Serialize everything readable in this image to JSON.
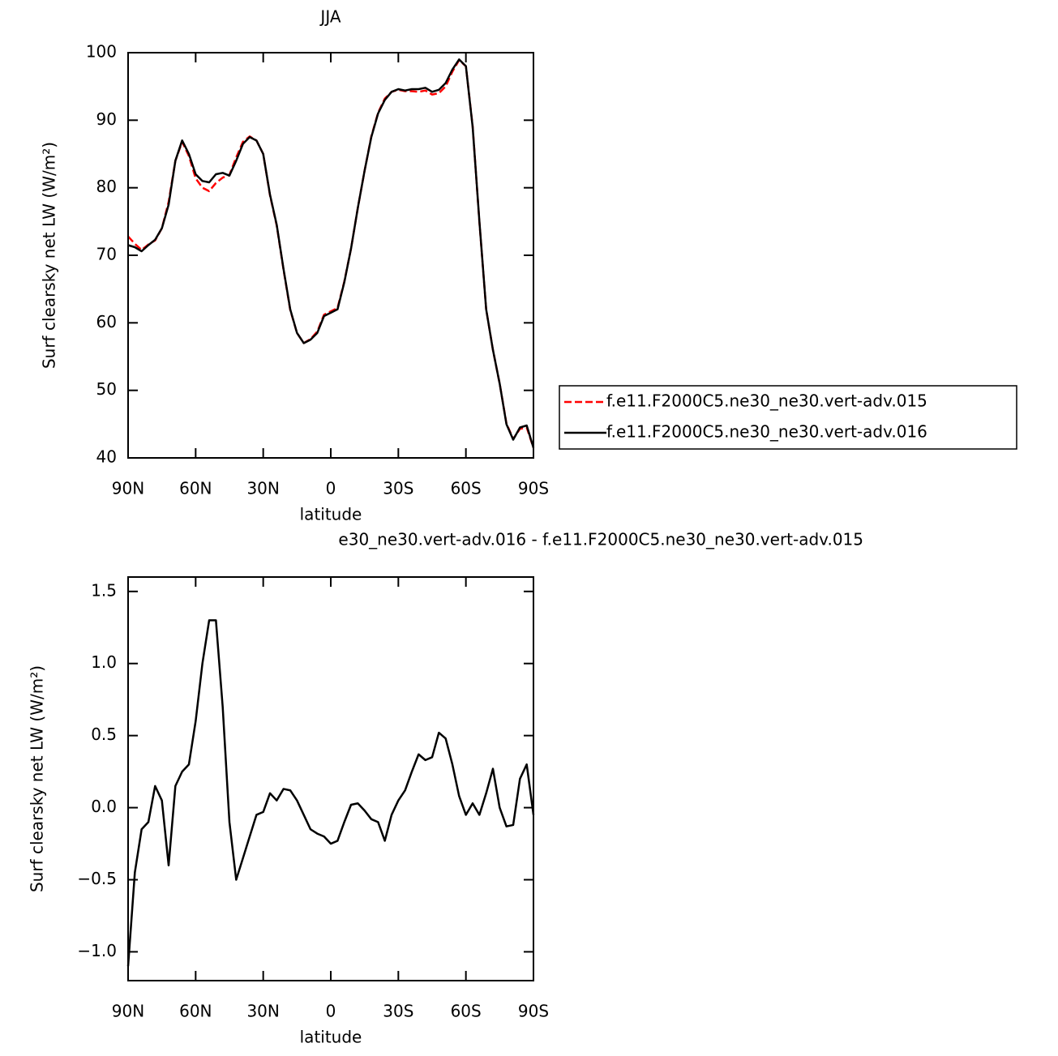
{
  "chart_data": [
    {
      "type": "line",
      "title": "JJA",
      "x_label": "latitude",
      "y_label": "Surf clearsky net LW (W/m²)",
      "x": [
        90,
        87,
        84,
        81,
        78,
        75,
        72,
        69,
        66,
        63,
        60,
        57,
        54,
        51,
        48,
        45,
        42,
        39,
        36,
        33,
        30,
        27,
        24,
        21,
        18,
        15,
        12,
        9,
        6,
        3,
        0,
        -3,
        -6,
        -9,
        -12,
        -15,
        -18,
        -21,
        -24,
        -27,
        -30,
        -33,
        -36,
        -39,
        -42,
        -45,
        -48,
        -51,
        -54,
        -57,
        -60,
        -63,
        -66,
        -69,
        -72,
        -75,
        -78,
        -81,
        -84,
        -87,
        -90
      ],
      "series": [
        {
          "name": "f.e11.F2000C5.ne30_ne30.vert-adv.015",
          "color": "#ff0000",
          "line_style": "dashed",
          "values": [
            72.8,
            71.7,
            70.8,
            71.6,
            72.2,
            74,
            77.9,
            84,
            86.8,
            84.7,
            81.4,
            80,
            79.5,
            80.7,
            81.5,
            81.9,
            84.5,
            86.8,
            87.6,
            87,
            85,
            78.9,
            74.4,
            67.9,
            61.9,
            58.5,
            57,
            57.6,
            58.7,
            61.2,
            61.7,
            62.2,
            66.1,
            71,
            77,
            82.5,
            87.6,
            91.1,
            93.2,
            94.2,
            94.5,
            94.3,
            94.3,
            94.2,
            94.4,
            93.8,
            94,
            95,
            97.2,
            98.9,
            98,
            89.1,
            74.9,
            62,
            56,
            51,
            45.1,
            42.8,
            44.3,
            44.5,
            41.5
          ]
        },
        {
          "name": "f.e11.F2000C5.ne30_ne30.vert-adv.016",
          "color": "#000000",
          "line_style": "solid",
          "values": [
            71.5,
            71.2,
            70.6,
            71.5,
            72.3,
            74,
            77.5,
            84,
            87,
            85,
            82,
            81,
            80.8,
            82,
            82.2,
            81.8,
            84,
            86.5,
            87.5,
            87,
            85,
            79,
            74.5,
            68,
            62,
            58.5,
            57,
            57.5,
            58.5,
            61,
            61.5,
            62,
            66,
            71,
            77,
            82.5,
            87.5,
            91,
            93,
            94.2,
            94.6,
            94.4,
            94.6,
            94.6,
            94.8,
            94.2,
            94.5,
            95.5,
            97.5,
            99,
            98,
            89,
            75,
            62,
            56,
            51,
            45,
            42.7,
            44.5,
            44.8,
            41.5
          ]
        }
      ],
      "xlim": [
        90,
        -90
      ],
      "xticks": [
        {
          "value": 90,
          "label": "90N"
        },
        {
          "value": 60,
          "label": "60N"
        },
        {
          "value": 30,
          "label": "30N"
        },
        0,
        {
          "value": -30,
          "label": "30S"
        },
        {
          "value": -60,
          "label": "60S"
        },
        {
          "value": -90,
          "label": "90S"
        }
      ],
      "ylim": [
        40,
        100
      ],
      "yticks": [
        40,
        50,
        60,
        70,
        80,
        90,
        100
      ],
      "legend": "right"
    },
    {
      "type": "line",
      "title": "e30_ne30.vert-adv.016 - f.e11.F2000C5.ne30_ne30.vert-adv.015",
      "x_label": "latitude",
      "y_label": "Surf clearsky net LW (W/m²)",
      "x": [
        90,
        87,
        84,
        81,
        78,
        75,
        72,
        69,
        66,
        63,
        60,
        57,
        54,
        51,
        48,
        45,
        42,
        39,
        36,
        33,
        30,
        27,
        24,
        21,
        18,
        15,
        12,
        9,
        6,
        3,
        0,
        -3,
        -6,
        -9,
        -12,
        -15,
        -18,
        -21,
        -24,
        -27,
        -30,
        -33,
        -36,
        -39,
        -42,
        -45,
        -48,
        -51,
        -54,
        -57,
        -60,
        -63,
        -66,
        -69,
        -72,
        -75,
        -78,
        -81,
        -84,
        -87,
        -90
      ],
      "series": [
        {
          "color": "#000000",
          "line_style": "solid",
          "values": [
            -1.1,
            -0.45,
            -0.15,
            -0.1,
            0.15,
            0.05,
            -0.4,
            0.15,
            0.25,
            0.3,
            0.6,
            1.0,
            1.3,
            1.3,
            0.7,
            -0.1,
            -0.5,
            -0.35,
            -0.2,
            -0.05,
            -0.03,
            0.1,
            0.05,
            0.13,
            0.12,
            0.05,
            -0.05,
            -0.15,
            -0.18,
            -0.2,
            -0.25,
            -0.23,
            -0.1,
            0.02,
            0.03,
            -0.02,
            -0.08,
            -0.1,
            -0.23,
            -0.05,
            0.05,
            0.12,
            0.25,
            0.37,
            0.33,
            0.35,
            0.52,
            0.48,
            0.3,
            0.08,
            -0.05,
            0.03,
            -0.05,
            0.1,
            0.27,
            0,
            -0.13,
            -0.12,
            0.2,
            0.3,
            -0.05
          ]
        }
      ],
      "xlim": [
        90,
        -90
      ],
      "xticks": [
        {
          "value": 90,
          "label": "90N"
        },
        {
          "value": 60,
          "label": "60N"
        },
        {
          "value": 30,
          "label": "30N"
        },
        0,
        {
          "value": -30,
          "label": "30S"
        },
        {
          "value": -60,
          "label": "60S"
        },
        {
          "value": -90,
          "label": "90S"
        }
      ],
      "ylim": [
        -1.2,
        1.6
      ],
      "yticks": [
        {
          "value": -1,
          "label": "−1.0"
        },
        {
          "value": -0.5,
          "label": "−0.5"
        },
        {
          "value": 0,
          "label": "0.0"
        },
        0.5,
        {
          "value": 1,
          "label": "1.0"
        },
        1.5
      ]
    }
  ]
}
